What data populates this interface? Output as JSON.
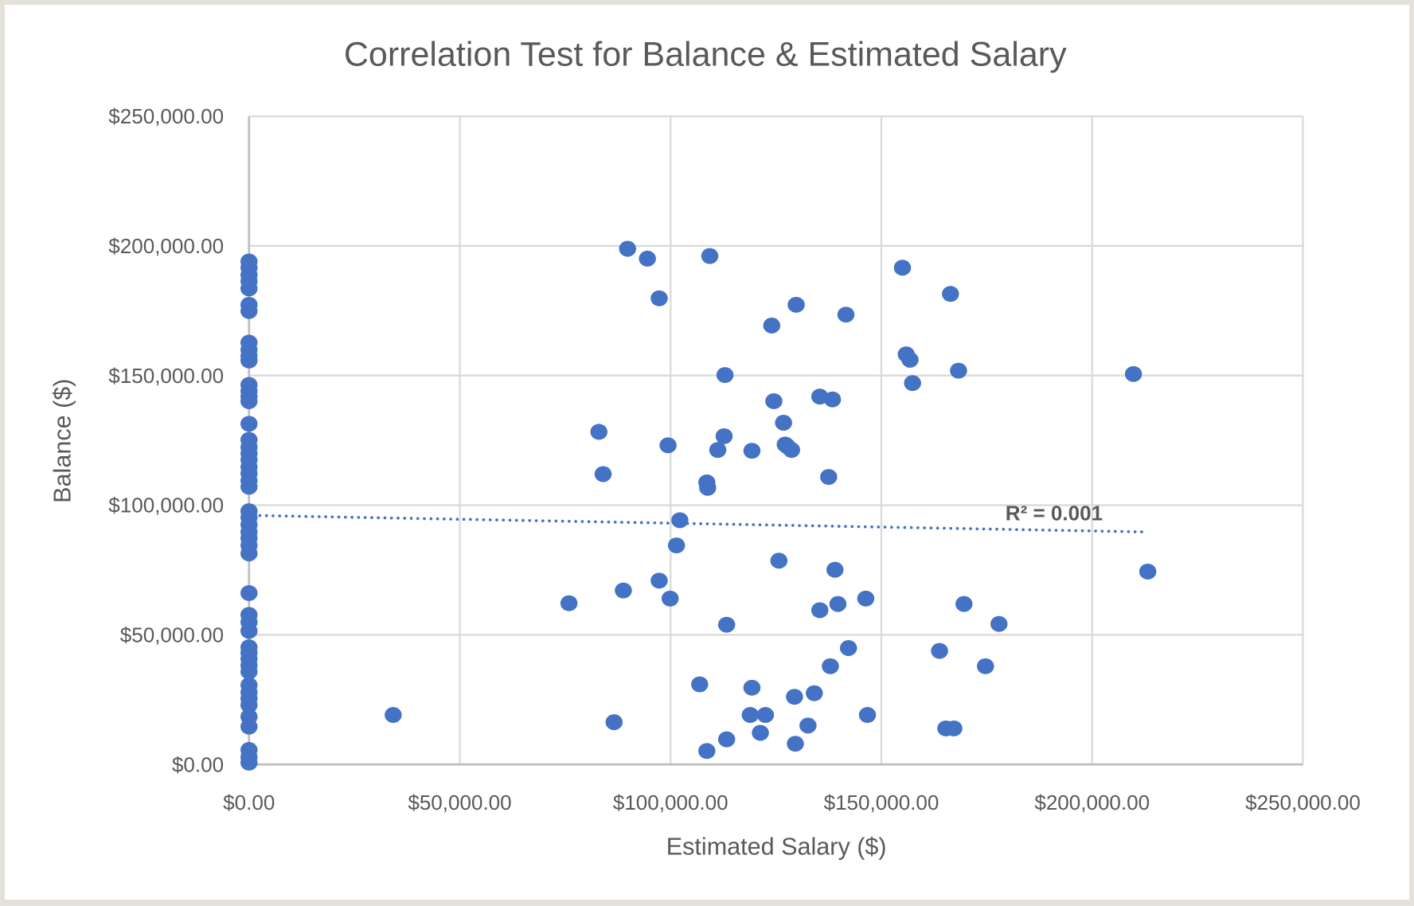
{
  "chart_data": {
    "type": "scatter",
    "title": "Correlation Test for Balance & Estimated Salary",
    "xlabel": "Estimated Salary ($)",
    "ylabel": "Balance ($)",
    "xlim": [
      0,
      250000
    ],
    "ylim": [
      0,
      250000
    ],
    "x_ticks": [
      "$0.00",
      "$50,000.00",
      "$100,000.00",
      "$150,000.00",
      "$200,000.00",
      "$250,000.00"
    ],
    "y_ticks": [
      "$0.00",
      "$50,000.00",
      "$100,000.00",
      "$150,000.00",
      "$200,000.00",
      "$250,000.00"
    ],
    "grid": true,
    "legend": "none",
    "marker_color": "#4472C4",
    "trendline": {
      "type": "linear",
      "style": "dotted",
      "color": "#4472C4",
      "x": [
        0,
        212000
      ],
      "y": [
        96000,
        89700
      ],
      "label": "R² = 0.001"
    },
    "points": {
      "x": [
        0,
        0,
        0,
        0,
        0,
        0,
        0,
        0,
        0,
        0,
        0,
        0,
        0,
        0,
        0,
        0,
        0,
        0,
        0,
        0,
        0,
        0,
        0,
        0,
        0,
        0,
        0,
        0,
        0,
        0,
        0,
        0,
        0,
        0,
        0,
        0,
        0,
        0,
        0,
        0,
        0,
        0,
        0,
        0,
        0,
        0,
        0,
        0,
        0,
        89800,
        94500,
        109300,
        97300,
        155000,
        166400,
        129800,
        141600,
        124000,
        155900,
        156800,
        168300,
        157400,
        209800,
        112900,
        124500,
        135400,
        138400,
        126800,
        83000,
        112700,
        99400,
        111200,
        119300,
        127200,
        127700,
        128700,
        84000,
        108600,
        108800,
        137500,
        102200,
        101400,
        125700,
        139000,
        213200,
        97300,
        88800,
        99900,
        75900,
        146300,
        139700,
        135400,
        169600,
        177900,
        113300,
        142200,
        163800,
        137900,
        174700,
        106900,
        119300,
        129400,
        134100,
        34200,
        118900,
        122500,
        146700,
        86600,
        132600,
        165300,
        167200,
        121300,
        113300,
        129600,
        108600
      ],
      "y": [
        194000,
        191600,
        188800,
        186400,
        183600,
        177300,
        174900,
        162700,
        159900,
        157500,
        155800,
        146400,
        144000,
        141900,
        140100,
        131400,
        125200,
        122400,
        120000,
        117500,
        114700,
        112300,
        109500,
        107100,
        97700,
        95300,
        92500,
        89700,
        87300,
        84500,
        81400,
        66100,
        57700,
        54900,
        51500,
        45200,
        43100,
        40700,
        38200,
        35800,
        30600,
        27800,
        25400,
        22900,
        18400,
        14600,
        5600,
        2800,
        700,
        198900,
        195100,
        196100,
        179800,
        191600,
        181500,
        177300,
        173500,
        169300,
        158200,
        156100,
        151900,
        147100,
        150600,
        150200,
        140100,
        141900,
        140800,
        131800,
        128300,
        126600,
        123100,
        121300,
        121000,
        123400,
        122700,
        121300,
        112000,
        108800,
        106700,
        110900,
        94200,
        84500,
        78600,
        75100,
        74400,
        70900,
        67100,
        64000,
        62200,
        64000,
        61900,
        59500,
        61900,
        54200,
        53900,
        44900,
        43800,
        37900,
        37900,
        30900,
        29600,
        26100,
        27500,
        19100,
        19100,
        19100,
        19100,
        16300,
        15000,
        13900,
        13900,
        12200,
        9700,
        8000,
        5200
      ]
    }
  }
}
